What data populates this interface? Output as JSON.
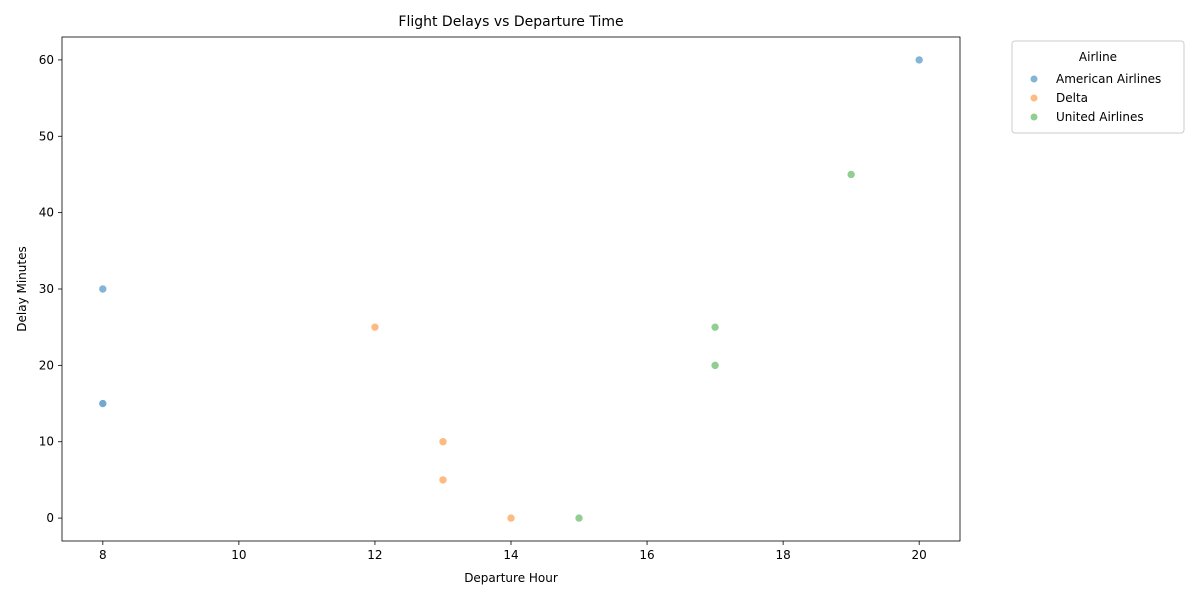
{
  "chart_data": {
    "type": "scatter",
    "title": "Flight Delays vs Departure Time",
    "xlabel": "Departure Hour",
    "ylabel": "Delay Minutes",
    "xlim": [
      7.4,
      20.6
    ],
    "ylim": [
      -3,
      63
    ],
    "xticks": [
      8,
      10,
      12,
      14,
      16,
      18,
      20
    ],
    "yticks": [
      0,
      10,
      20,
      30,
      40,
      50,
      60
    ],
    "grid": false,
    "legend": {
      "title": "Airline",
      "placement": "outside-top-right"
    },
    "series": [
      {
        "name": "American Airlines",
        "color": "#6fa7cf",
        "points": [
          {
            "x": 8,
            "y": 30
          },
          {
            "x": 8,
            "y": 15
          },
          {
            "x": 8,
            "y": 15
          },
          {
            "x": 20,
            "y": 60
          }
        ]
      },
      {
        "name": "Delta",
        "color": "#fdae6b",
        "points": [
          {
            "x": 12,
            "y": 25
          },
          {
            "x": 13,
            "y": 10
          },
          {
            "x": 13,
            "y": 5
          },
          {
            "x": 14,
            "y": 0
          }
        ]
      },
      {
        "name": "United Airlines",
        "color": "#7fc67f",
        "points": [
          {
            "x": 15,
            "y": 0
          },
          {
            "x": 17,
            "y": 25
          },
          {
            "x": 17,
            "y": 20
          },
          {
            "x": 19,
            "y": 45
          }
        ]
      }
    ]
  }
}
